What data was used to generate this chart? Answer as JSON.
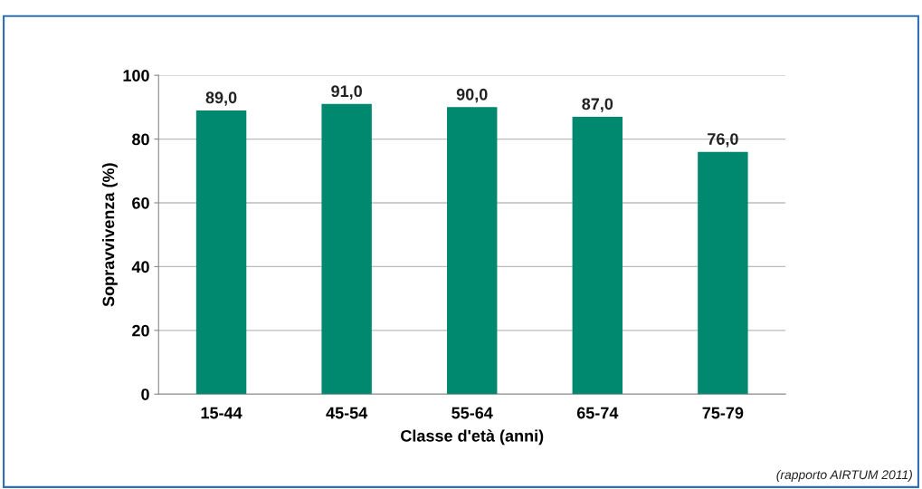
{
  "chart_data": {
    "type": "bar",
    "xlabel": "Classe d'età (anni)",
    "ylabel": "Sopravvivenza (%)",
    "categories": [
      "15-44",
      "45-54",
      "55-64",
      "65-74",
      "75-79"
    ],
    "values": [
      89.0,
      91.0,
      90.0,
      87.0,
      76.0
    ],
    "value_labels": [
      "89,0",
      "91,0",
      "90,0",
      "87,0",
      "76,0"
    ],
    "color": "#00896f",
    "ylim": [
      0,
      100
    ],
    "yticks": [
      0,
      20,
      40,
      60,
      80,
      100
    ],
    "grid": "y",
    "legend": false,
    "annotations": [
      "(rapporto AIRTUM 2011)"
    ]
  }
}
